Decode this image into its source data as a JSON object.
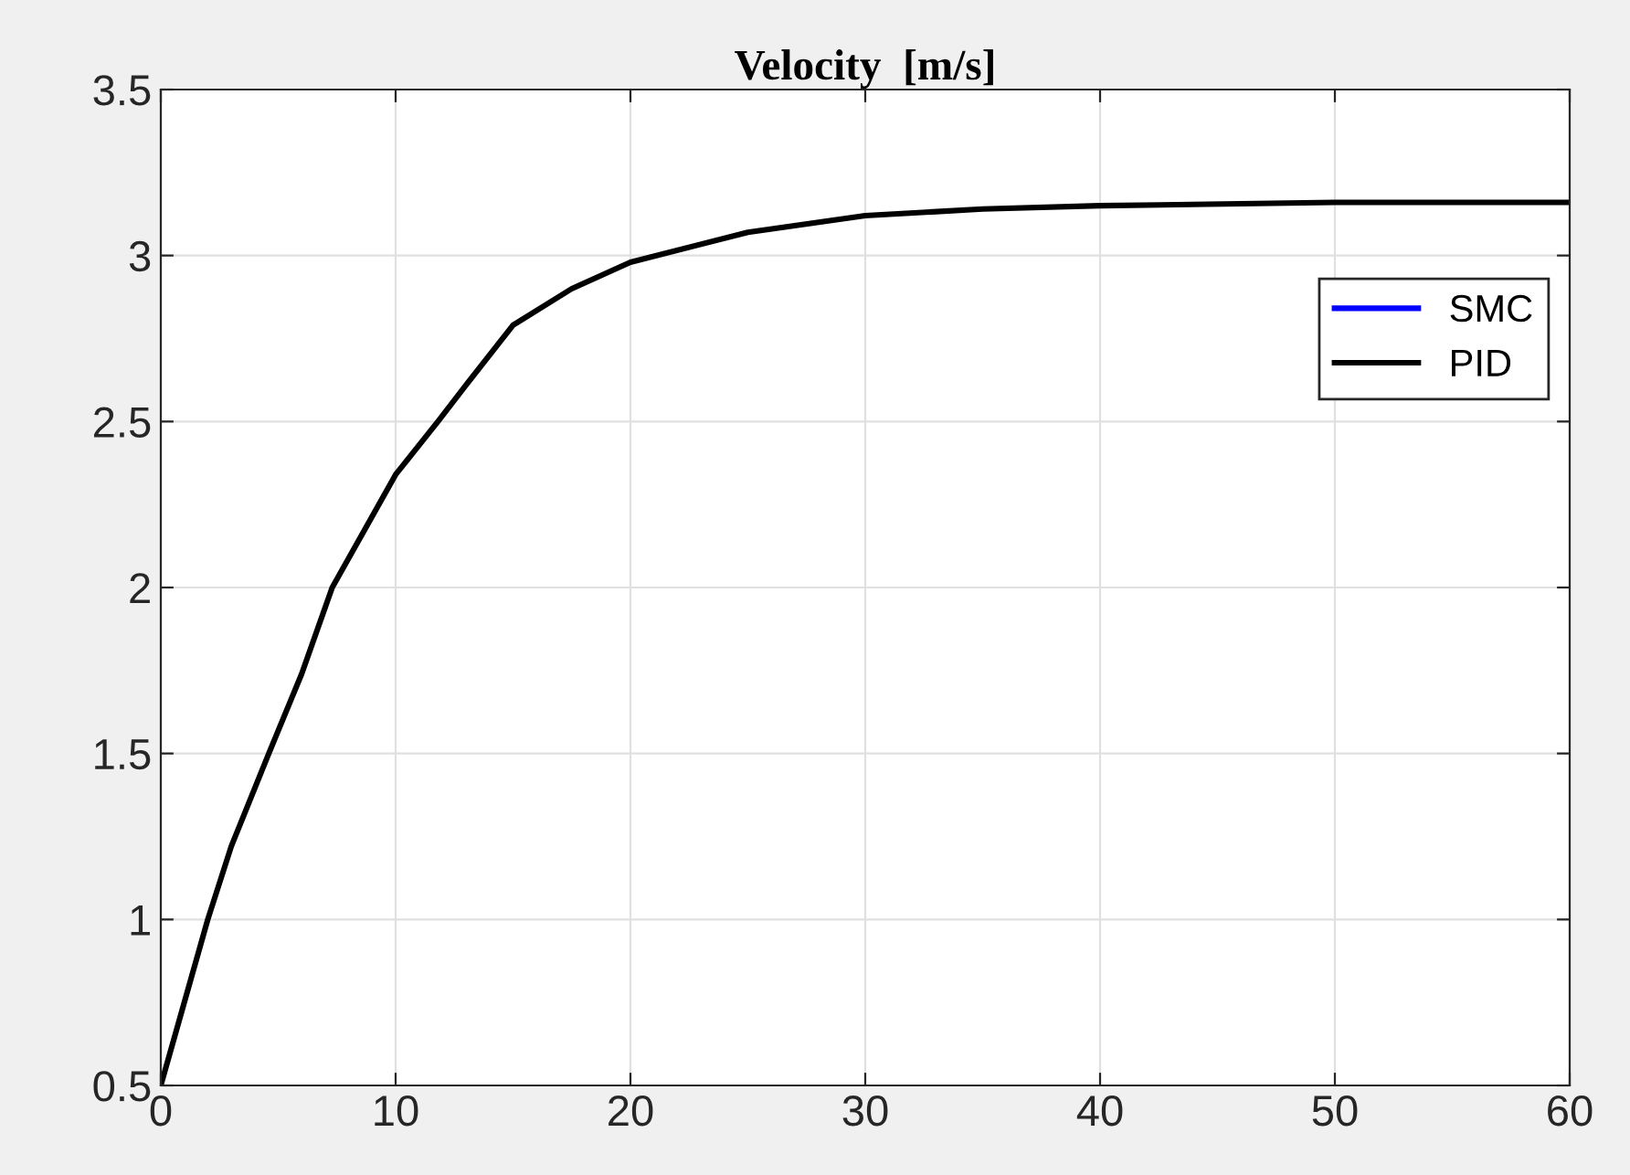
{
  "chart_data": {
    "type": "line",
    "title": "Velocity  [m/s]",
    "x": [
      0,
      1,
      2,
      3,
      4.6,
      6,
      7.3,
      10,
      11.8,
      13,
      15,
      17.5,
      20,
      25,
      30,
      35,
      40,
      50,
      60
    ],
    "series": [
      {
        "name": "SMC",
        "color": "#0000ff",
        "values": [
          null,
          null,
          null,
          null,
          null,
          null,
          null,
          null,
          null,
          null,
          null,
          null,
          null,
          null,
          null,
          null,
          null,
          null,
          null
        ]
      },
      {
        "name": "PID",
        "color": "#000000",
        "values": [
          0.5,
          0.75,
          1.0,
          1.22,
          1.5,
          1.74,
          2.0,
          2.34,
          2.5,
          2.61,
          2.79,
          2.9,
          2.98,
          3.07,
          3.12,
          3.14,
          3.15,
          3.16,
          3.16
        ]
      }
    ],
    "xlim": [
      0,
      60
    ],
    "xticks": [
      0,
      10,
      20,
      30,
      40,
      50,
      60
    ],
    "ylim": [
      0.5,
      3.5
    ],
    "yticks": [
      0.5,
      1,
      1.5,
      2,
      2.5,
      3,
      3.5
    ],
    "grid": true,
    "legend": "top right",
    "line_style": "solid",
    "marker": "none"
  }
}
